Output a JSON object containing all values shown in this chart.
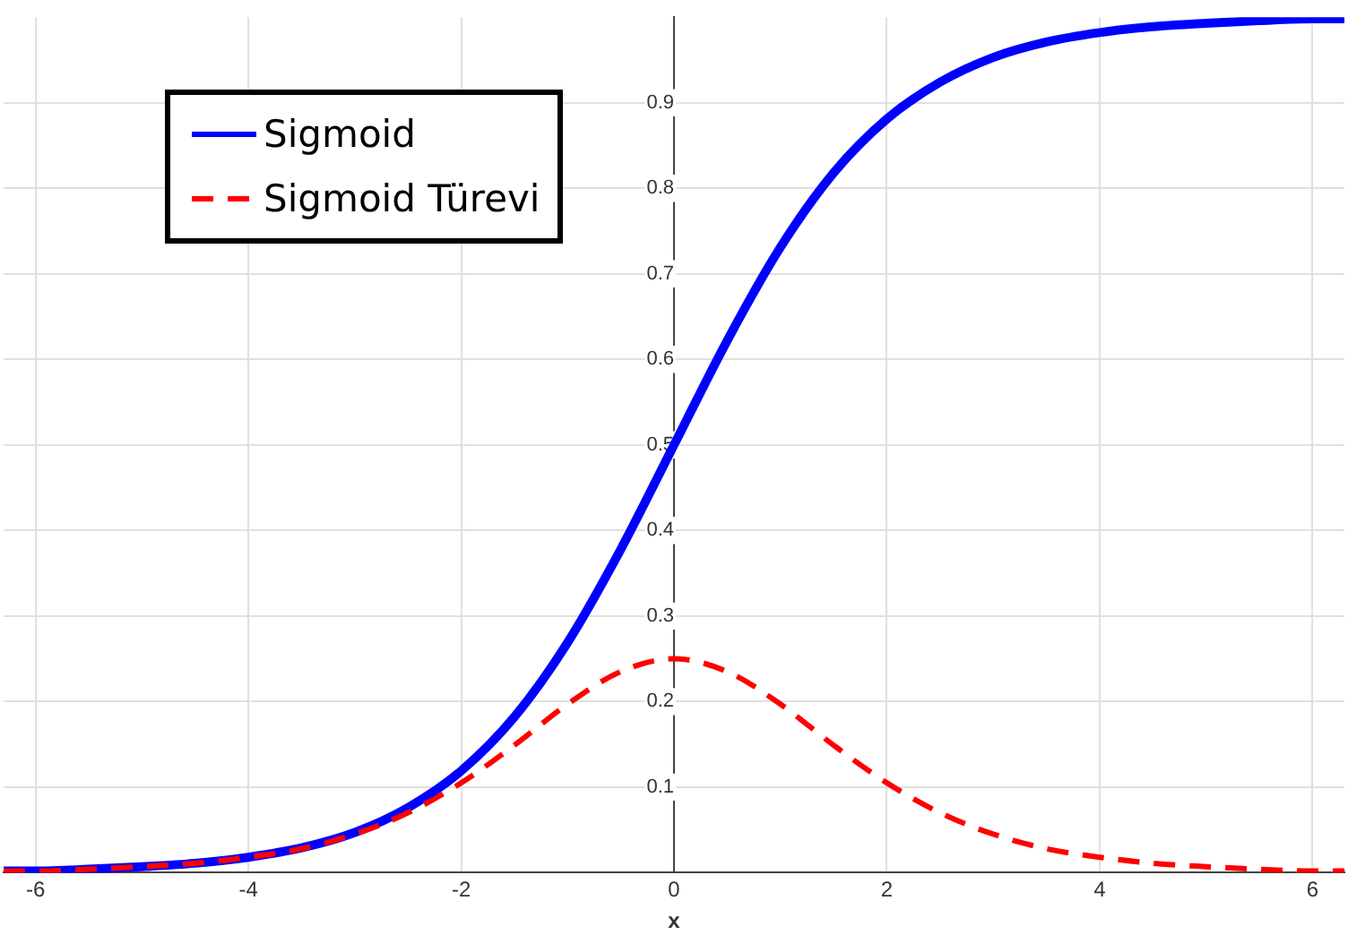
{
  "chart_data": {
    "type": "line",
    "xlabel": "x",
    "x": [
      -6.3,
      -6,
      -5.5,
      -5,
      -4.5,
      -4,
      -3.5,
      -3,
      -2.5,
      -2,
      -1.5,
      -1,
      -0.5,
      0,
      0.5,
      1,
      1.5,
      2,
      2.5,
      3,
      3.5,
      4,
      4.5,
      5,
      5.5,
      6,
      6.3
    ],
    "series": [
      {
        "name": "Sigmoid",
        "color": "#0000ff",
        "line_style": "solid",
        "values": [
          0.002,
          0.002,
          0.004,
          0.007,
          0.011,
          0.018,
          0.029,
          0.047,
          0.076,
          0.119,
          0.182,
          0.269,
          0.378,
          0.5,
          0.622,
          0.731,
          0.818,
          0.881,
          0.924,
          0.953,
          0.971,
          0.982,
          0.989,
          0.993,
          0.996,
          0.998,
          0.998
        ]
      },
      {
        "name": "Sigmoid Türevi",
        "color": "#ff0000",
        "line_style": "dashed",
        "values": [
          0.002,
          0.002,
          0.004,
          0.007,
          0.011,
          0.018,
          0.028,
          0.045,
          0.07,
          0.105,
          0.149,
          0.197,
          0.235,
          0.25,
          0.235,
          0.197,
          0.149,
          0.105,
          0.07,
          0.045,
          0.028,
          0.018,
          0.011,
          0.007,
          0.004,
          0.002,
          0.002
        ]
      }
    ],
    "xlim": [
      -6.3,
      6.3
    ],
    "xticks": [
      -6,
      -4,
      -2,
      0,
      2,
      4,
      6
    ],
    "ylim": [
      0,
      1
    ],
    "yticks": [
      0.1,
      0.2,
      0.3,
      0.4,
      0.5,
      0.6,
      0.7,
      0.8,
      0.9
    ],
    "grid": true,
    "legend": "top left"
  }
}
